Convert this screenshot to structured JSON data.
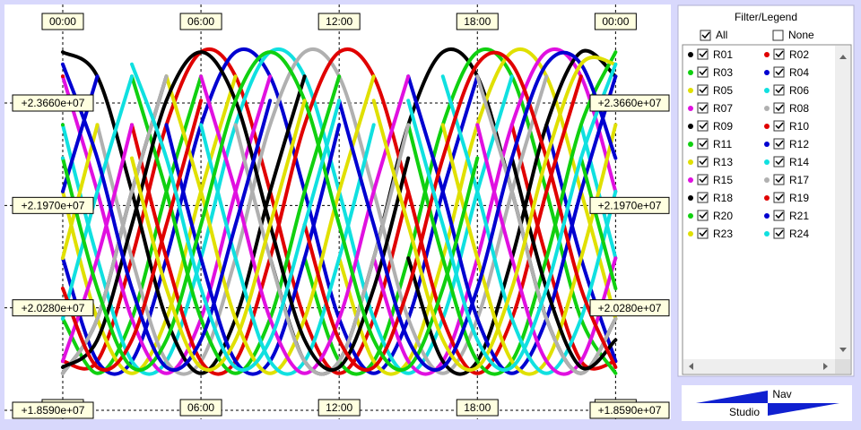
{
  "chart_data": {
    "type": "line",
    "x": [
      0,
      1.5,
      3,
      4.5,
      6,
      7.5,
      9,
      10.5,
      12,
      13.5,
      15,
      16.5,
      18,
      19.5,
      21,
      22.5,
      24
    ],
    "xlim": [
      -2.53,
      26.4
    ],
    "xticks": [
      {
        "value": 0,
        "label": "00:00"
      },
      {
        "value": 6,
        "label": "06:00"
      },
      {
        "value": 12,
        "label": "12:00"
      },
      {
        "value": 18,
        "label": "18:00"
      },
      {
        "value": 24,
        "label": "00:00"
      }
    ],
    "ylim": [
      18442000.0,
      25286000.0
    ],
    "yticks": [
      {
        "value": 18590000.0,
        "label": "+1.8590e+07"
      },
      {
        "value": 20280000.0,
        "label": "+2.0280e+07"
      },
      {
        "value": 21970000.0,
        "label": "+2.1970e+07"
      },
      {
        "value": 23660000.0,
        "label": "+2.3660e+07"
      }
    ],
    "grid": true,
    "series": [
      {
        "name": "R01",
        "color": "#000000",
        "values": [
          19200000.0,
          20100000.0,
          22200000.0,
          24100000.0,
          null,
          null,
          21100000.0,
          19400000.0,
          19400000.0,
          21100000.0,
          23300000.0,
          24500000.0,
          24100000.0,
          22200000.0,
          20100000.0,
          19200000.0,
          20100000.0
        ]
      },
      {
        "name": "R02",
        "color": "#e00000",
        "values": [
          19400000.0,
          19400000.0,
          21100000.0,
          23300000.0,
          24500000.0,
          24100000.0,
          22200000.0,
          20100000.0,
          19200000.0,
          20100000.0,
          22200000.0,
          null,
          null,
          23300000.0,
          21100000.0,
          19400000.0,
          19400000.0
        ]
      },
      {
        "name": "R03",
        "color": "#10d010",
        "values": [
          20100000.0,
          19200000.0,
          20100000.0,
          22200000.0,
          24100000.0,
          null,
          null,
          21100000.0,
          19400000.0,
          19400000.0,
          21100000.0,
          23300000.0,
          24500000.0,
          24100000.0,
          22200000.0,
          20100000.0,
          19200000.0
        ]
      },
      {
        "name": "R04",
        "color": "#0000d0",
        "values": [
          21100000.0,
          19400000.0,
          19400000.0,
          21100000.0,
          23300000.0,
          24500000.0,
          24100000.0,
          22200000.0,
          20100000.0,
          19200000.0,
          20100000.0,
          22200000.0,
          24100000.0,
          null,
          23300000.0,
          21100000.0,
          19400000.0
        ]
      },
      {
        "name": "R05",
        "color": "#e0e000",
        "values": [
          22200000.0,
          20100000.0,
          19200000.0,
          20100000.0,
          22200000.0,
          24100000.0,
          null,
          null,
          21100000.0,
          19400000.0,
          19400000.0,
          21100000.0,
          23300000.0,
          24500000.0,
          24100000.0,
          22200000.0,
          20100000.0
        ]
      },
      {
        "name": "R06",
        "color": "#10e0e0",
        "values": [
          23300000.0,
          21100000.0,
          19400000.0,
          19400000.0,
          21100000.0,
          23300000.0,
          24500000.0,
          24100000.0,
          22200000.0,
          20100000.0,
          19200000.0,
          20100000.0,
          22200000.0,
          24100000.0,
          null,
          23300000.0,
          21100000.0
        ]
      },
      {
        "name": "R07",
        "color": "#e010e0",
        "values": [
          24100000.0,
          22200000.0,
          20100000.0,
          19200000.0,
          20100000.0,
          22200000.0,
          24100000.0,
          null,
          null,
          21100000.0,
          19400000.0,
          19400000.0,
          21100000.0,
          23300000.0,
          24500000.0,
          24100000.0,
          22200000.0
        ]
      },
      {
        "name": "R08",
        "color": "#b0b0b0",
        "values": [
          null,
          23300000.0,
          21100000.0,
          19400000.0,
          19400000.0,
          21100000.0,
          23300000.0,
          24500000.0,
          24100000.0,
          22200000.0,
          20100000.0,
          19200000.0,
          20100000.0,
          22200000.0,
          24100000.0,
          null,
          23300000.0
        ]
      },
      {
        "name": "R09",
        "color": "#000000",
        "values": [
          24500000.0,
          24100000.0,
          22200000.0,
          20100000.0,
          19200000.0,
          20100000.0,
          22200000.0,
          24100000.0,
          null,
          null,
          21100000.0,
          19400000.0,
          19400000.0,
          21100000.0,
          23300000.0,
          24500000.0,
          24100000.0
        ]
      },
      {
        "name": "R10",
        "color": "#e00000",
        "values": [
          24100000.0,
          null,
          23300000.0,
          21100000.0,
          19400000.0,
          19400000.0,
          21100000.0,
          23300000.0,
          24500000.0,
          24100000.0,
          22200000.0,
          20100000.0,
          19200000.0,
          20100000.0,
          22200000.0,
          24100000.0,
          null
        ]
      },
      {
        "name": "R11",
        "color": "#10d010",
        "values": [
          23300000.0,
          null,
          24100000.0,
          22200000.0,
          20100000.0,
          19200000.0,
          20100000.0,
          22200000.0,
          24100000.0,
          null,
          23300000.0,
          21100000.0,
          19400000.0,
          19400000.0,
          21100000.0,
          23300000.0,
          24500000.0
        ]
      },
      {
        "name": "R12",
        "color": "#0000d0",
        "values": [
          22200000.0,
          24100000.0,
          null,
          23300000.0,
          21100000.0,
          19400000.0,
          19400000.0,
          21100000.0,
          23300000.0,
          null,
          24100000.0,
          22200000.0,
          20100000.0,
          19200000.0,
          20100000.0,
          22200000.0,
          24100000.0
        ]
      },
      {
        "name": "R13",
        "color": "#e0e000",
        "values": [
          21100000.0,
          23300000.0,
          null,
          24100000.0,
          22200000.0,
          20100000.0,
          19200000.0,
          20100000.0,
          22200000.0,
          24100000.0,
          null,
          23300000.0,
          21100000.0,
          19400000.0,
          19400000.0,
          21100000.0,
          23300000.0
        ]
      },
      {
        "name": "R14",
        "color": "#10e0e0",
        "values": [
          20100000.0,
          22200000.0,
          24100000.0,
          null,
          23300000.0,
          21100000.0,
          19400000.0,
          19400000.0,
          21100000.0,
          23300000.0,
          null,
          24100000.0,
          22200000.0,
          20100000.0,
          19200000.0,
          20100000.0,
          22200000.0
        ]
      },
      {
        "name": "R15",
        "color": "#e010e0",
        "values": [
          19400000.0,
          21100000.0,
          23300000.0,
          null,
          24100000.0,
          22200000.0,
          20100000.0,
          19200000.0,
          20100000.0,
          22200000.0,
          24100000.0,
          null,
          23300000.0,
          21100000.0,
          19400000.0,
          19400000.0,
          21100000.0
        ]
      },
      {
        "name": "R17",
        "color": "#b0b0b0",
        "values": [
          19200000.0,
          20100000.0,
          22200000.0,
          24100000.0,
          null,
          23300000.0,
          21100000.0,
          19400000.0,
          19400000.0,
          21100000.0,
          23300000.0,
          null,
          24100000.0,
          22200000.0,
          20100000.0,
          19200000.0,
          20100000.0
        ]
      },
      {
        "name": "R18",
        "color": "#000000",
        "values": [
          19300000.0,
          19750000.0,
          21650000.0,
          23700000.0,
          24500000.0,
          23700000.0,
          21650000.0,
          19750000.0,
          19300000.0,
          20600000.0,
          22750000.0,
          null,
          null,
          22750000.0,
          20600000.0,
          19300000.0,
          19750000.0
        ]
      },
      {
        "name": "R19",
        "color": "#e00000",
        "values": [
          20600000.0,
          19300000.0,
          19750000.0,
          21650000.0,
          23700000.0,
          null,
          null,
          21650000.0,
          19750000.0,
          19300000.0,
          20600000.0,
          22750000.0,
          24300000.0,
          24300000.0,
          22750000.0,
          20600000.0,
          19300000.0
        ]
      },
      {
        "name": "R20",
        "color": "#10d010",
        "values": [
          22750000.0,
          20600000.0,
          19300000.0,
          19750000.0,
          21650000.0,
          23700000.0,
          24500000.0,
          23700000.0,
          21650000.0,
          19750000.0,
          19300000.0,
          20600000.0,
          22750000.0,
          null,
          null,
          22750000.0,
          20600000.0
        ]
      },
      {
        "name": "R21",
        "color": "#0000d0",
        "values": [
          24300000.0,
          22750000.0,
          20600000.0,
          19300000.0,
          19750000.0,
          21650000.0,
          23700000.0,
          null,
          23700000.0,
          21650000.0,
          19750000.0,
          19300000.0,
          20600000.0,
          22750000.0,
          24300000.0,
          24300000.0,
          22750000.0
        ]
      },
      {
        "name": "R23",
        "color": "#e0e000",
        "values": [
          null,
          null,
          22750000.0,
          20600000.0,
          19300000.0,
          19750000.0,
          21650000.0,
          23700000.0,
          null,
          23700000.0,
          21650000.0,
          19750000.0,
          19300000.0,
          20600000.0,
          22750000.0,
          24300000.0,
          24300000.0
        ]
      },
      {
        "name": "R24",
        "color": "#10e0e0",
        "values": [
          22750000.0,
          null,
          24300000.0,
          22750000.0,
          20600000.0,
          19300000.0,
          19750000.0,
          21650000.0,
          23700000.0,
          null,
          23700000.0,
          21650000.0,
          19750000.0,
          19300000.0,
          20600000.0,
          22750000.0,
          24300000.0
        ]
      }
    ]
  },
  "controls": {
    "legend_title": "Filter/Legend",
    "all": "All",
    "none": "None",
    "nav_top": "Nav",
    "nav_bottom": "Studio"
  }
}
